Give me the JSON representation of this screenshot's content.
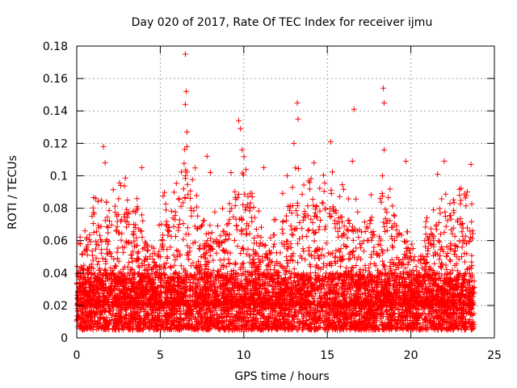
{
  "chart_data": {
    "type": "scatter",
    "title": "Day 020 of 2017, Rate Of TEC Index for receiver ijmu",
    "xlabel": "GPS time / hours",
    "ylabel": "ROTI / TECUs",
    "xlim": [
      0,
      25
    ],
    "ylim": [
      0,
      0.18
    ],
    "xticks": [
      0,
      5,
      10,
      15,
      20,
      25
    ],
    "xtick_labels": [
      "0",
      "5",
      "10",
      "15",
      "20",
      "25"
    ],
    "yticks": [
      0,
      0.02,
      0.04,
      0.06,
      0.08,
      0.1,
      0.12,
      0.14,
      0.16,
      0.18
    ],
    "ytick_labels": [
      "0",
      "0.02",
      "0.04",
      "0.06",
      "0.08",
      "0.1",
      "0.12",
      "0.14",
      "0.16",
      "0.18"
    ],
    "grid": true,
    "marker": "+",
    "color": "#ff0000",
    "series": [
      {
        "name": "ROTI",
        "x_range": [
          0,
          23.8
        ],
        "typical_range": [
          0.005,
          0.04
        ],
        "peaks": [
          {
            "x": 6.5,
            "y": 0.175
          },
          {
            "x": 6.55,
            "y": 0.152
          },
          {
            "x": 6.5,
            "y": 0.144
          },
          {
            "x": 6.6,
            "y": 0.127
          },
          {
            "x": 6.6,
            "y": 0.118
          },
          {
            "x": 9.7,
            "y": 0.134
          },
          {
            "x": 9.8,
            "y": 0.129
          },
          {
            "x": 9.9,
            "y": 0.116
          },
          {
            "x": 13.2,
            "y": 0.145
          },
          {
            "x": 13.25,
            "y": 0.135
          },
          {
            "x": 13.0,
            "y": 0.12
          },
          {
            "x": 16.6,
            "y": 0.141
          },
          {
            "x": 18.35,
            "y": 0.154
          },
          {
            "x": 18.4,
            "y": 0.145
          },
          {
            "x": 18.4,
            "y": 0.116
          },
          {
            "x": 15.2,
            "y": 0.121
          },
          {
            "x": 1.6,
            "y": 0.118
          },
          {
            "x": 1.7,
            "y": 0.108
          },
          {
            "x": 3.9,
            "y": 0.105
          },
          {
            "x": 7.8,
            "y": 0.112
          },
          {
            "x": 8.0,
            "y": 0.102
          },
          {
            "x": 19.7,
            "y": 0.109
          },
          {
            "x": 22.0,
            "y": 0.109
          },
          {
            "x": 23.6,
            "y": 0.107
          },
          {
            "x": 11.2,
            "y": 0.105
          },
          {
            "x": 14.2,
            "y": 0.108
          },
          {
            "x": 16.5,
            "y": 0.109
          },
          {
            "x": 18.3,
            "y": 0.1
          },
          {
            "x": 12.6,
            "y": 0.1
          },
          {
            "x": 21.6,
            "y": 0.101
          }
        ]
      }
    ]
  }
}
